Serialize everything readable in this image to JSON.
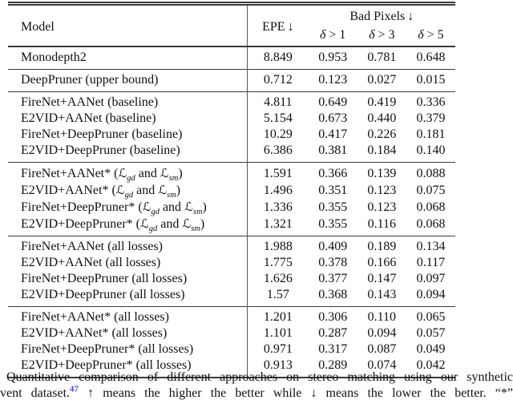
{
  "table": {
    "header": {
      "model": "Model",
      "epe": "EPE",
      "bad_pixels": "Bad Pixels",
      "down_arrow": "↓",
      "deltas": [
        {
          "sym": "δ",
          "rest": " > 1"
        },
        {
          "sym": "δ",
          "rest": " > 3"
        },
        {
          "sym": "δ",
          "rest": " > 5"
        }
      ]
    },
    "groups": [
      [
        {
          "model": "Monodepth2",
          "epe": "8.849",
          "d1": "0.953",
          "d3": "0.781",
          "d5": "0.648"
        }
      ],
      [
        {
          "model": "DeepPruner (upper bound)",
          "epe": "0.712",
          "d1": "0.123",
          "d3": "0.027",
          "d5": "0.015"
        }
      ],
      [
        {
          "model": "FireNet+AANet (baseline)",
          "epe": "4.811",
          "d1": "0.649",
          "d3": "0.419",
          "d5": "0.336"
        },
        {
          "model": "E2VID+AANet (baseline)",
          "epe": "5.154",
          "d1": "0.673",
          "d3": "0.440",
          "d5": "0.379"
        },
        {
          "model": "FireNet+DeepPruner (baseline)",
          "epe": "10.29",
          "d1": "0.417",
          "d3": "0.226",
          "d5": "0.181"
        },
        {
          "model": "E2VID+DeepPruner (baseline)",
          "epe": "6.386",
          "d1": "0.381",
          "d3": "0.184",
          "d5": "0.140"
        }
      ],
      [
        {
          "model": "FireNet+AANet* (ℒ_{gd} and ℒ_{sm})",
          "epe": "1.591",
          "d1": "0.366",
          "d3": "0.139",
          "d5": "0.088"
        },
        {
          "model": "E2VID+AANet* (ℒ_{gd} and ℒ_{sm})",
          "epe": "1.496",
          "d1": "0.351",
          "d3": "0.123",
          "d5": "0.075"
        },
        {
          "model": "FireNet+DeepPruner* (ℒ_{gd} and ℒ_{sm})",
          "epe": "1.336",
          "d1": "0.355",
          "d3": "0.123",
          "d5": "0.068"
        },
        {
          "model": "E2VID+DeepPruner* (ℒ_{gd} and ℒ_{sm})",
          "epe": "1.321",
          "d1": "0.355",
          "d3": "0.116",
          "d5": "0.068"
        }
      ],
      [
        {
          "model": "FireNet+AANet (all losses)",
          "epe": "1.988",
          "d1": "0.409",
          "d3": "0.189",
          "d5": "0.134"
        },
        {
          "model": "E2VID+AANet (all losses)",
          "epe": "1.775",
          "d1": "0.378",
          "d3": "0.166",
          "d5": "0.117"
        },
        {
          "model": "FireNet+DeepPruner (all losses)",
          "epe": "1.626",
          "d1": "0.377",
          "d3": "0.147",
          "d5": "0.097"
        },
        {
          "model": "E2VID+DeepPruner (all losses)",
          "epe": "1.57",
          "d1": "0.368",
          "d3": "0.143",
          "d5": "0.094"
        }
      ],
      [
        {
          "model": "FireNet+AANet* (all losses)",
          "epe": "1.201",
          "d1": "0.306",
          "d3": "0.110",
          "d5": "0.065"
        },
        {
          "model": "E2VID+AANet* (all losses)",
          "epe": "1.101",
          "d1": "0.287",
          "d3": "0.094",
          "d5": "0.057"
        },
        {
          "model": "FireNet+DeepPruner* (all losses)",
          "epe": "0.971",
          "d1": "0.317",
          "d3": "0.087",
          "d5": "0.049"
        },
        {
          "model": "E2VID+DeepPruner* (all losses)",
          "epe": "0.913",
          "d1": "0.289",
          "d3": "0.074",
          "d5": "0.042"
        }
      ]
    ]
  },
  "caption": {
    "line1": "Quantitative comparison of different approaches on stereo matching using our synthetic",
    "line2_pre": "vent dataset.",
    "citation": "47",
    "line2_post": "↑ means the higher the better while ↓ means the lower the better.  “*”",
    "colors": {
      "citation_blue": "#4b4bd8",
      "rule_color": "#3a3a3a"
    }
  }
}
